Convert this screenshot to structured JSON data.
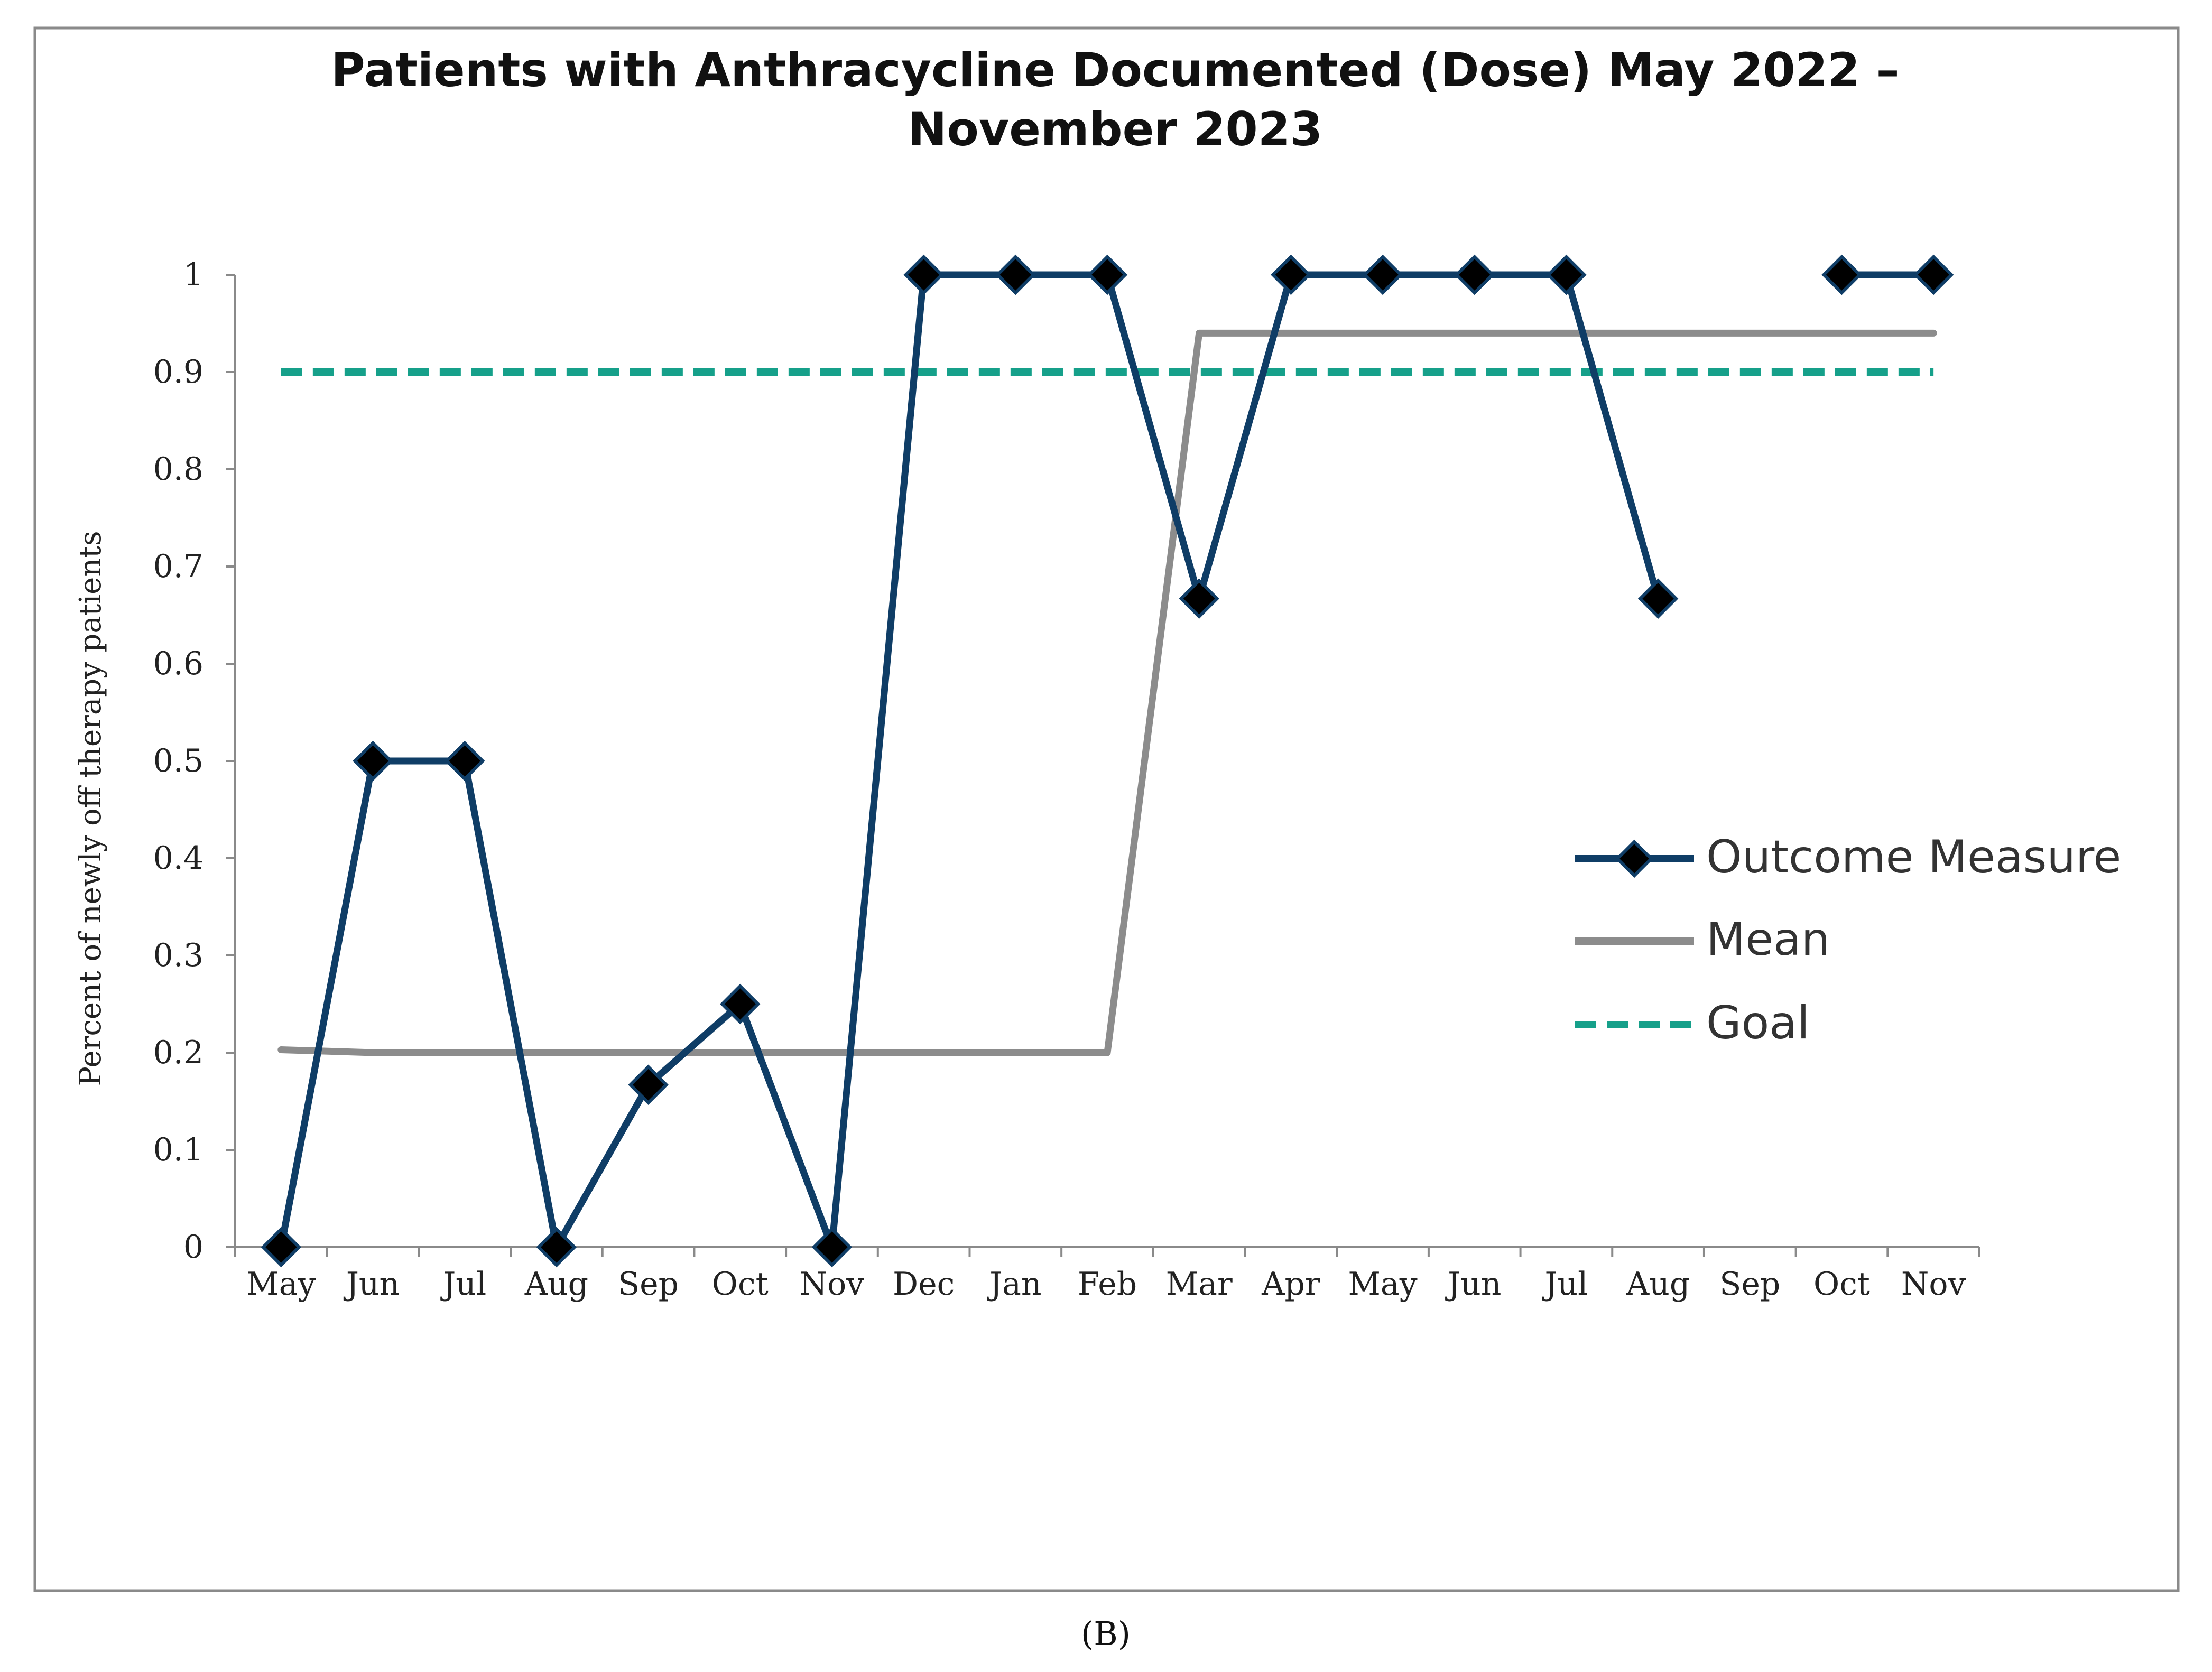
{
  "chart_data": {
    "type": "line",
    "title_lines": [
      "Patients with Anthracycline Documented (Dose) May 2022 –",
      "November 2023"
    ],
    "ylabel": "Percent of newly off therapy patients",
    "xlabel": "",
    "categories": [
      "May",
      "Jun",
      "Jul",
      "Aug",
      "Sep",
      "Oct",
      "Nov",
      "Dec",
      "Jan",
      "Feb",
      "Mar",
      "Apr",
      "May",
      "Jun",
      "Jul",
      "Aug",
      "Sep",
      "Oct",
      "Nov"
    ],
    "ylim": [
      0,
      1
    ],
    "yticks": [
      "0",
      "0.1",
      "0.2",
      "0.3",
      "0.4",
      "0.5",
      "0.6",
      "0.7",
      "0.8",
      "0.9",
      "1"
    ],
    "series": [
      {
        "name": "Outcome Measure",
        "color": "#0f3d66",
        "marker": "diamond",
        "values": [
          0,
          0.5,
          0.5,
          0,
          0.167,
          0.25,
          0,
          1,
          1,
          1,
          0.667,
          1,
          1,
          1,
          1,
          0.667,
          null,
          1,
          1
        ]
      },
      {
        "name": "Mean",
        "color": "#8c8c8c",
        "values": [
          0.203,
          0.2,
          0.2,
          0.2,
          0.2,
          0.2,
          0.2,
          0.2,
          0.2,
          0.2,
          0.94,
          0.94,
          0.94,
          0.94,
          0.94,
          0.94,
          0.94,
          0.94,
          0.94
        ]
      },
      {
        "name": "Goal",
        "color": "#16a08a",
        "dashed": true,
        "values": [
          0.9,
          0.9,
          0.9,
          0.9,
          0.9,
          0.9,
          0.9,
          0.9,
          0.9,
          0.9,
          0.9,
          0.9,
          0.9,
          0.9,
          0.9,
          0.9,
          0.9,
          0.9,
          0.9
        ]
      }
    ],
    "legend_position": "right",
    "grid": false
  },
  "caption": "(B)"
}
